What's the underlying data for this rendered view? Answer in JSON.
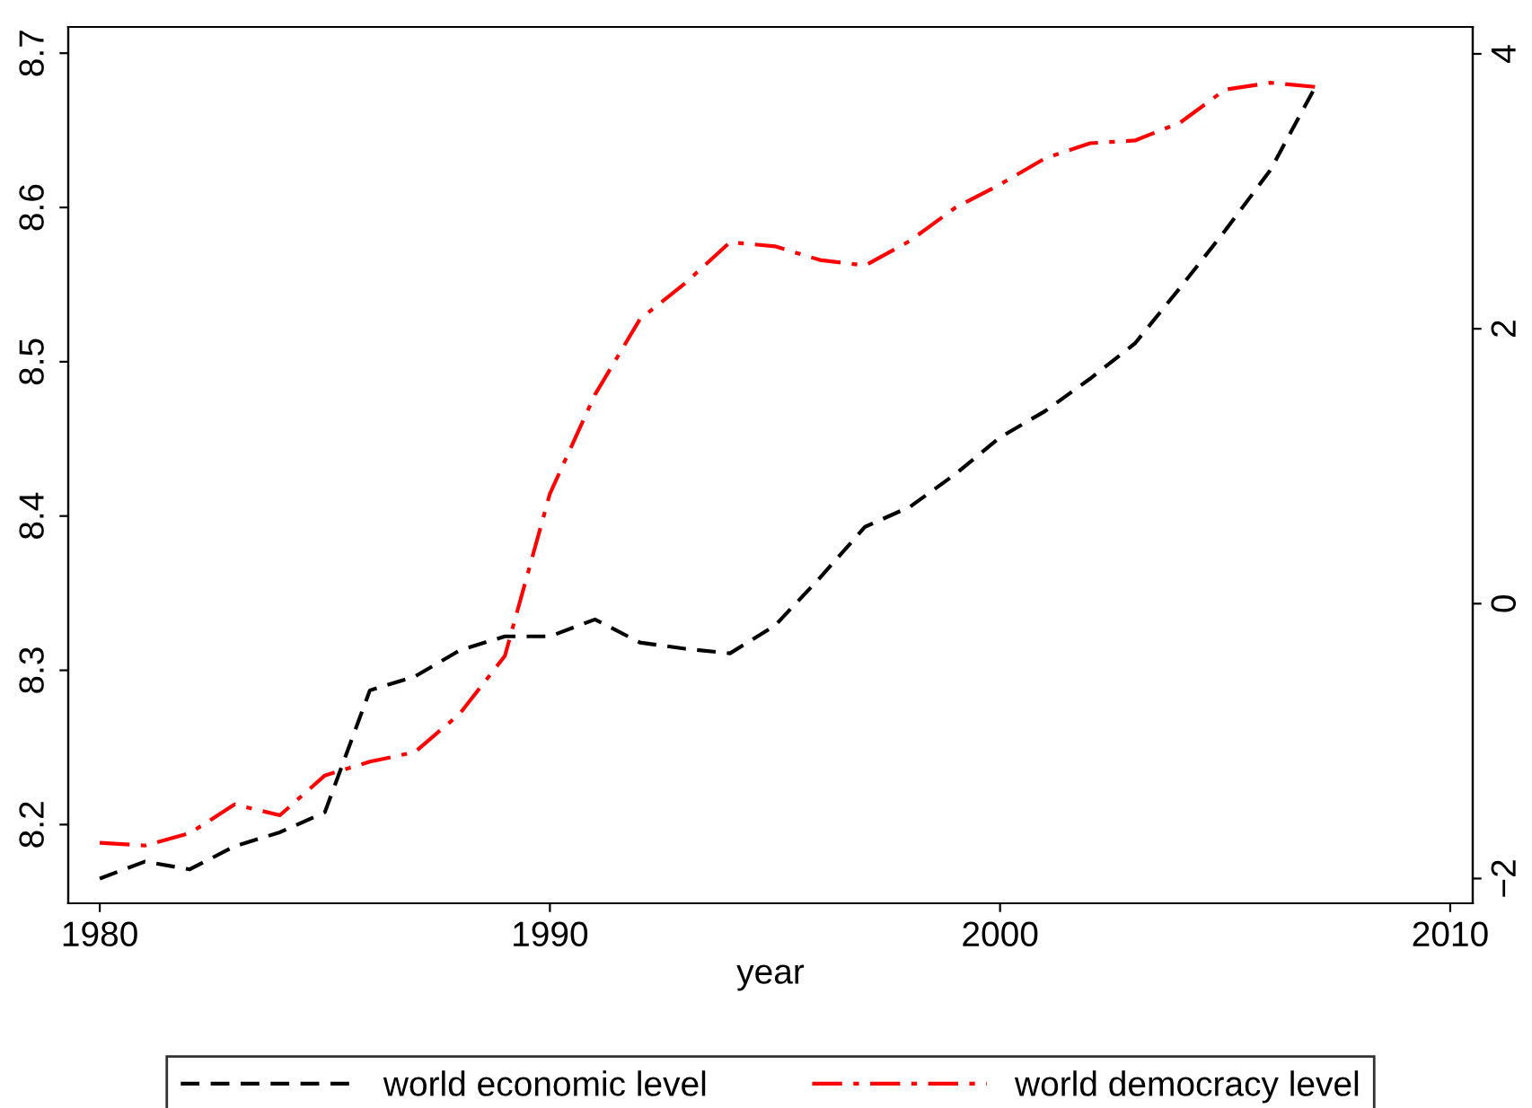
{
  "chart_data": {
    "type": "line",
    "xlabel": "year",
    "x": [
      1980,
      1981,
      1982,
      1983,
      1984,
      1985,
      1986,
      1987,
      1988,
      1989,
      1990,
      1991,
      1992,
      1993,
      1994,
      1995,
      1996,
      1997,
      1998,
      1999,
      2000,
      2001,
      2002,
      2003,
      2004,
      2005,
      2006,
      2007
    ],
    "series": [
      {
        "name": "world economic level",
        "color": "#000000",
        "line_style": "dashed",
        "values": [
          8.165,
          8.176,
          8.171,
          8.186,
          8.195,
          8.208,
          8.287,
          8.296,
          8.313,
          8.322,
          8.322,
          8.333,
          8.318,
          8.314,
          8.311,
          8.329,
          8.36,
          8.393,
          8.406,
          8.427,
          8.451,
          8.468,
          8.489,
          8.512,
          8.548,
          8.585,
          8.624,
          8.678
        ]
      },
      {
        "name": "world democracy level",
        "color": "#ff0000",
        "line_style": "dashdot",
        "axis": "y2",
        "values": [
          -1.74,
          -1.76,
          -1.67,
          -1.46,
          -1.54,
          -1.25,
          -1.15,
          -1.08,
          -0.8,
          -0.38,
          0.8,
          1.52,
          2.07,
          2.33,
          2.63,
          2.6,
          2.5,
          2.46,
          2.64,
          2.88,
          3.05,
          3.24,
          3.35,
          3.37,
          3.5,
          3.74,
          3.79,
          3.76
        ]
      }
    ],
    "xlim": [
      1979.3,
      2010.5
    ],
    "xticks": [
      1980,
      1990,
      2000,
      2010
    ],
    "ylim": [
      8.149,
      8.717
    ],
    "yticks": [
      8.2,
      8.3,
      8.4,
      8.5,
      8.6,
      8.7
    ],
    "y2lim": [
      -2.18,
      4.196
    ],
    "y2ticks": [
      {
        "value": -2,
        "label": "−2"
      },
      0,
      2,
      4
    ],
    "grid": false,
    "legend": "bottom",
    "marker": "none"
  }
}
